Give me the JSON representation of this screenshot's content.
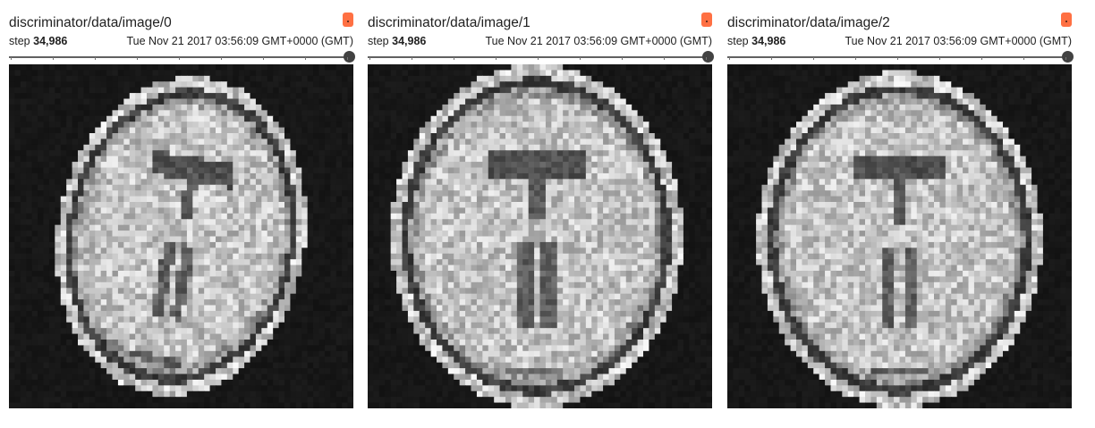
{
  "cards": [
    {
      "tag": "discriminator/data/image/0",
      "step_label": "step",
      "step_value": "34,986",
      "wall_time": "Tue Nov 21 2017 03:56:09 GMT+0000 (GMT)",
      "slider_position": 1.0,
      "image_description": "grayscale axial brain MRI slice"
    },
    {
      "tag": "discriminator/data/image/1",
      "step_label": "step",
      "step_value": "34,986",
      "wall_time": "Tue Nov 21 2017 03:56:09 GMT+0000 (GMT)",
      "slider_position": 1.0,
      "image_description": "grayscale axial brain MRI slice"
    },
    {
      "tag": "discriminator/data/image/2",
      "step_label": "step",
      "step_value": "34,986",
      "wall_time": "Tue Nov 21 2017 03:56:09 GMT+0000 (GMT)",
      "slider_position": 1.0,
      "image_description": "grayscale axial brain MRI slice"
    }
  ],
  "icons": {
    "pin": "pin-icon",
    "slider_thumb": "slider-thumb"
  },
  "colors": {
    "pin_button": "#ff7043",
    "slider_track": "#616161",
    "slider_thumb": "#424242",
    "image_background": "#161616"
  }
}
